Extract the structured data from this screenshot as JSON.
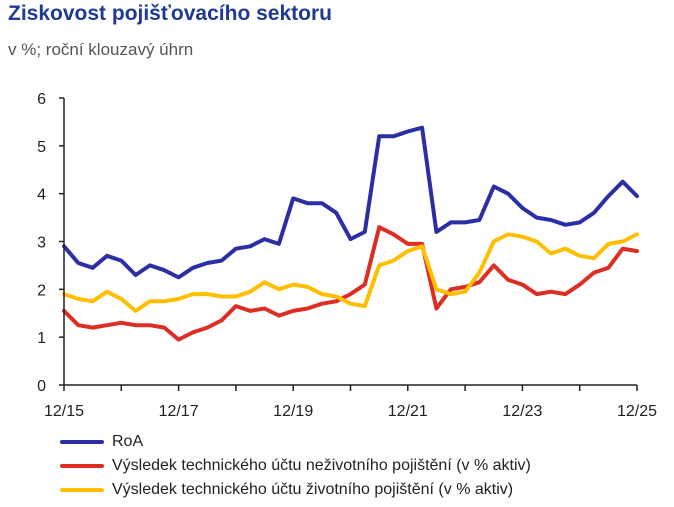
{
  "chart_data": {
    "type": "line",
    "title": "Ziskovost pojišťovacího sektoru",
    "subtitle": "v %; roční klouzavý úhrn",
    "ylim": [
      0,
      6
    ],
    "yticks": [
      "0",
      "1",
      "2",
      "3",
      "4",
      "5",
      "6"
    ],
    "x_period_start": "12/15",
    "x_period_end": "12/25",
    "xtick_labels": [
      "12/15",
      "12/17",
      "12/19",
      "12/21",
      "12/23",
      "12/25"
    ],
    "grid": false,
    "legend_position": "bottom-left",
    "series": [
      {
        "name": "RoA",
        "color": "#2b2fa6",
        "values": [
          2.9,
          2.55,
          2.45,
          2.7,
          2.6,
          2.3,
          2.5,
          2.4,
          2.25,
          2.45,
          2.55,
          2.6,
          2.85,
          2.9,
          3.05,
          2.95,
          3.9,
          3.8,
          3.8,
          3.6,
          3.05,
          3.2,
          5.2,
          5.2,
          5.3,
          5.38,
          3.2,
          3.4,
          3.4,
          3.45,
          4.15,
          4.0,
          3.7,
          3.5,
          3.45,
          3.35,
          3.4,
          3.6,
          3.95,
          4.25,
          3.95
        ]
      },
      {
        "name": "Výsledek technického účtu neživotního pojištění (v % aktiv)",
        "color": "#dd2e24",
        "values": [
          1.55,
          1.25,
          1.2,
          1.25,
          1.3,
          1.25,
          1.25,
          1.2,
          0.95,
          1.1,
          1.2,
          1.35,
          1.65,
          1.55,
          1.6,
          1.45,
          1.55,
          1.6,
          1.7,
          1.75,
          1.9,
          2.1,
          3.3,
          3.15,
          2.95,
          2.95,
          1.6,
          2.0,
          2.05,
          2.15,
          2.5,
          2.2,
          2.1,
          1.9,
          1.95,
          1.9,
          2.1,
          2.35,
          2.45,
          2.85,
          2.8
        ]
      },
      {
        "name": "Výsledek technického účtu životního pojištění (v % aktiv)",
        "color": "#ffbf00",
        "values": [
          1.9,
          1.8,
          1.75,
          1.95,
          1.8,
          1.55,
          1.75,
          1.75,
          1.8,
          1.9,
          1.9,
          1.85,
          1.85,
          1.95,
          2.15,
          2.0,
          2.1,
          2.05,
          1.9,
          1.85,
          1.7,
          1.65,
          2.5,
          2.6,
          2.8,
          2.9,
          2.0,
          1.9,
          1.95,
          2.35,
          3.0,
          3.15,
          3.1,
          3.0,
          2.75,
          2.85,
          2.7,
          2.65,
          2.95,
          3.0,
          3.15
        ]
      }
    ]
  }
}
